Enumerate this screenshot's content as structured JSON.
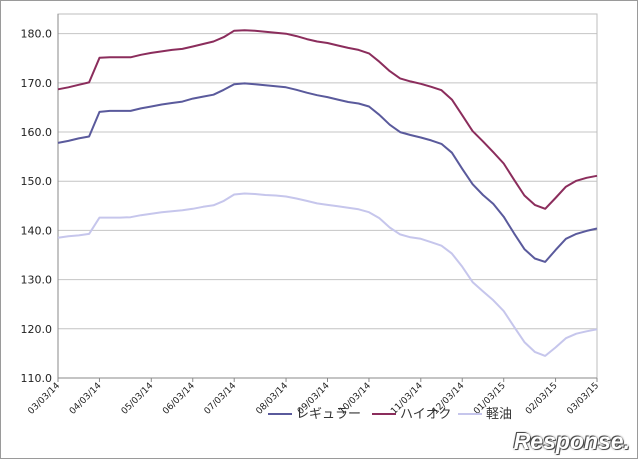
{
  "chart_data": {
    "type": "line",
    "title": "",
    "xlabel": "",
    "ylabel": "",
    "ylim": [
      110,
      184
    ],
    "grid": "horizontal",
    "legend_position": "bottom",
    "yticks": [
      "110.0",
      "120.0",
      "130.0",
      "140.0",
      "150.0",
      "160.0",
      "170.0",
      "180.0"
    ],
    "x_tick_labels": [
      "03/03/14",
      "04/03/14",
      "05/03/14",
      "06/03/14",
      "07/03/14",
      "08/03/14",
      "09/03/14",
      "10/03/14",
      "11/03/14",
      "12/03/14",
      "01/03/15",
      "02/03/15",
      "03/03/15"
    ],
    "x_count": 53,
    "series": [
      {
        "name": "レギュラー",
        "color": "#5a5a9c",
        "values": [
          157.8,
          158.2,
          158.7,
          159.1,
          164.1,
          164.3,
          164.3,
          164.3,
          164.8,
          165.2,
          165.6,
          165.9,
          166.2,
          166.8,
          167.2,
          167.6,
          168.6,
          169.7,
          169.9,
          169.7,
          169.5,
          169.3,
          169.1,
          168.6,
          168.0,
          167.5,
          167.1,
          166.6,
          166.1,
          165.8,
          165.2,
          163.5,
          161.5,
          160.0,
          159.4,
          158.9,
          158.3,
          157.6,
          155.8,
          152.5,
          149.4,
          147.2,
          145.4,
          142.8,
          139.4,
          136.2,
          134.3,
          133.6,
          136.0,
          138.3,
          139.3,
          139.9,
          140.4
        ]
      },
      {
        "name": "ハイオク",
        "color": "#8b2d5c",
        "values": [
          168.7,
          169.1,
          169.6,
          170.1,
          175.1,
          175.2,
          175.2,
          175.2,
          175.7,
          176.1,
          176.4,
          176.7,
          176.9,
          177.4,
          177.9,
          178.4,
          179.3,
          180.6,
          180.7,
          180.6,
          180.4,
          180.2,
          180.0,
          179.5,
          178.9,
          178.4,
          178.1,
          177.6,
          177.1,
          176.7,
          176.0,
          174.3,
          172.4,
          170.9,
          170.3,
          169.8,
          169.2,
          168.5,
          166.6,
          163.4,
          160.2,
          158.1,
          155.9,
          153.6,
          150.3,
          147.1,
          145.2,
          144.4,
          146.6,
          148.9,
          150.1,
          150.7,
          151.1
        ]
      },
      {
        "name": "軽油",
        "color": "#c6c6ec",
        "values": [
          138.5,
          138.8,
          139.0,
          139.3,
          142.6,
          142.6,
          142.6,
          142.7,
          143.1,
          143.4,
          143.7,
          143.9,
          144.1,
          144.4,
          144.8,
          145.1,
          146.0,
          147.3,
          147.5,
          147.4,
          147.2,
          147.1,
          146.9,
          146.5,
          146.0,
          145.5,
          145.2,
          144.9,
          144.6,
          144.3,
          143.7,
          142.5,
          140.6,
          139.2,
          138.6,
          138.3,
          137.6,
          136.9,
          135.3,
          132.6,
          129.5,
          127.6,
          125.8,
          123.6,
          120.4,
          117.3,
          115.3,
          114.5,
          116.2,
          118.1,
          119.0,
          119.5,
          119.9
        ]
      }
    ]
  },
  "watermark": "Response."
}
